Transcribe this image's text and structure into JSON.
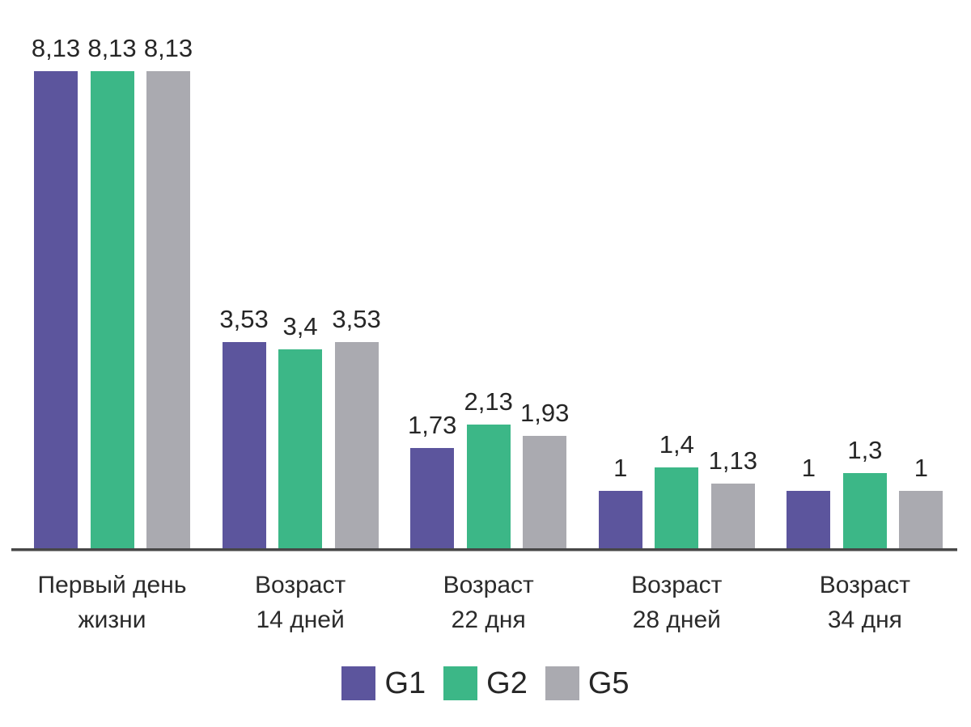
{
  "chart_data": {
    "type": "bar",
    "title": "",
    "categories": [
      {
        "lines": [
          "Первый день",
          "жизни"
        ]
      },
      {
        "lines": [
          "Возраст",
          "14 дней"
        ]
      },
      {
        "lines": [
          "Возраст",
          "22 дня"
        ]
      },
      {
        "lines": [
          "Возраст",
          "28 дней"
        ]
      },
      {
        "lines": [
          "Возраст",
          "34 дня"
        ]
      }
    ],
    "series": [
      {
        "name": "G1",
        "color": "#5C559D",
        "values": [
          8.13,
          3.53,
          1.73,
          1,
          1
        ],
        "labels": [
          "8,13",
          "3,53",
          "1,73",
          "1",
          "1"
        ]
      },
      {
        "name": "G2",
        "color": "#3CB787",
        "values": [
          8.13,
          3.4,
          2.13,
          1.4,
          1.3
        ],
        "labels": [
          "8,13",
          "3,4",
          "2,13",
          "1,4",
          "1,3"
        ]
      },
      {
        "name": "G5",
        "color": "#AAAAB0",
        "values": [
          8.13,
          3.53,
          1.93,
          1.13,
          1
        ],
        "labels": [
          "8,13",
          "3,53",
          "1,93",
          "1,13",
          "1"
        ]
      }
    ],
    "ylim": [
      0,
      8.13
    ],
    "grid": false,
    "y_axis_visible": false,
    "legend_position": "bottom",
    "decimal_separator": ",",
    "axis_line_color": "#474747",
    "text_color": "#2b2b2b",
    "background": "#ffffff"
  }
}
